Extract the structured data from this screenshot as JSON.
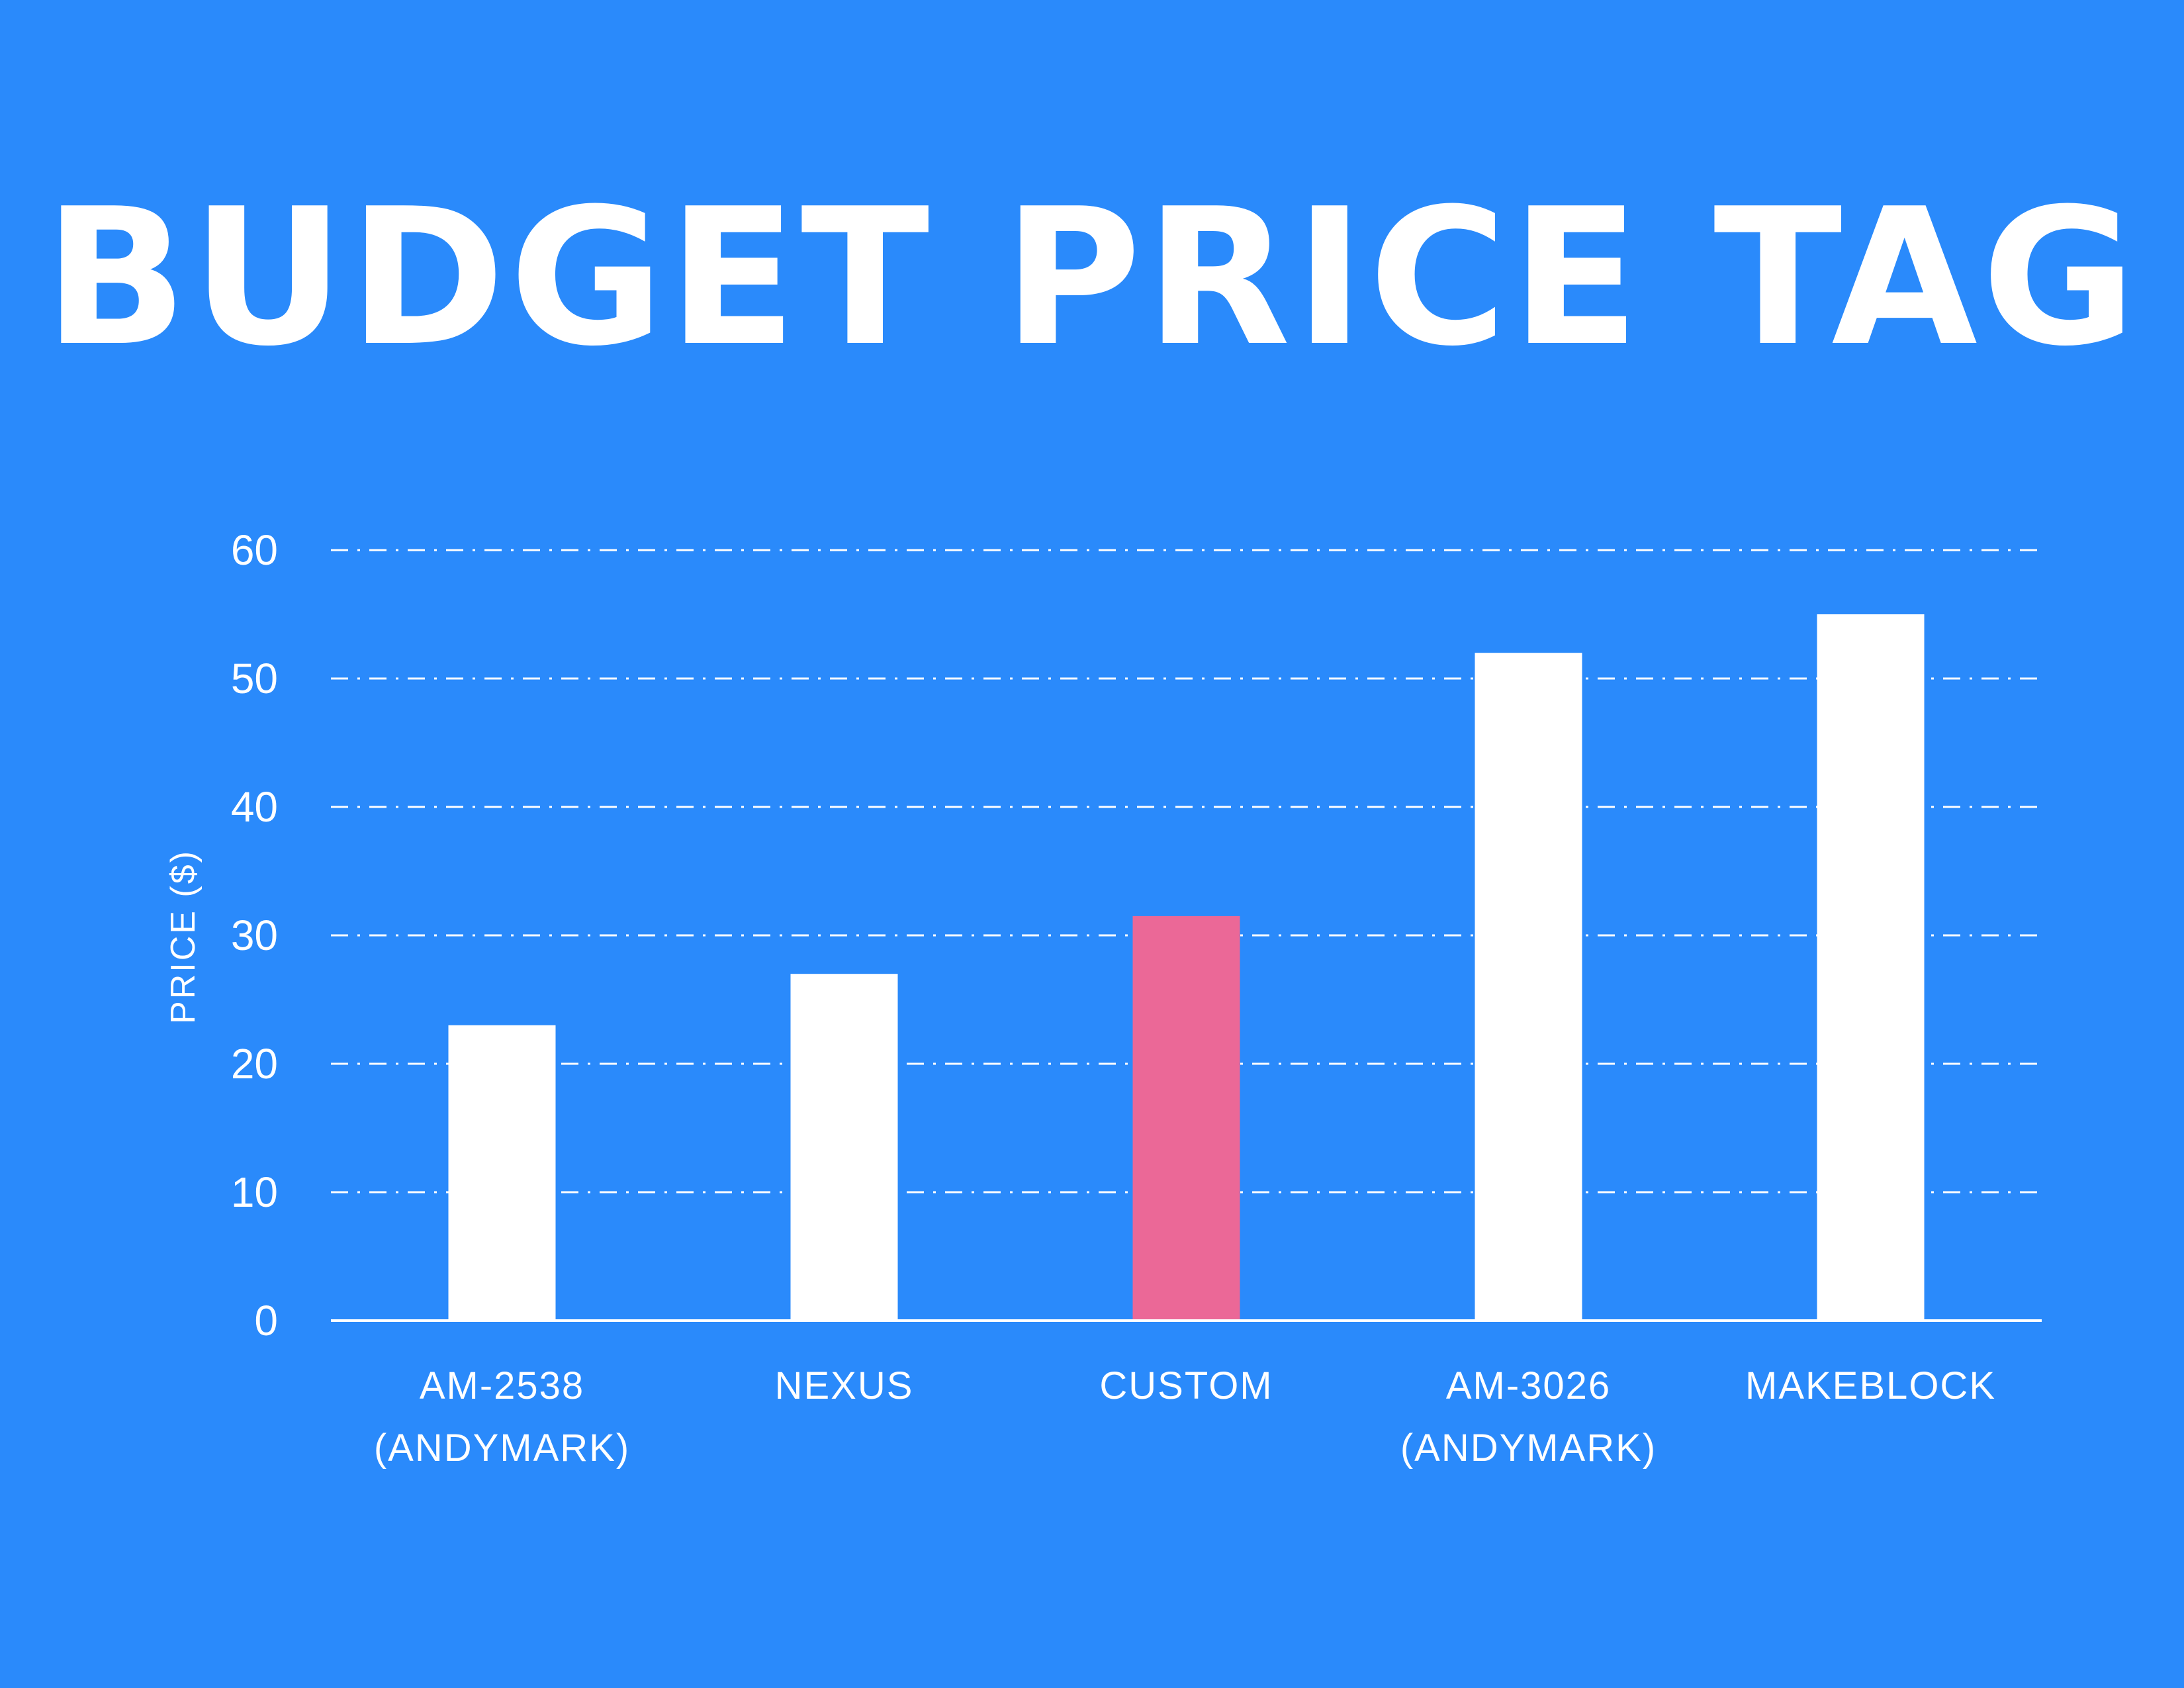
{
  "chart_data": {
    "type": "bar",
    "title": "BUDGET PRICE TAG",
    "xlabel": "",
    "ylabel": "PRICE ($)",
    "ylim": [
      0,
      60
    ],
    "yticks": [
      0,
      10,
      20,
      30,
      40,
      50,
      60
    ],
    "grid": true,
    "categories": [
      [
        "AM-2538",
        "(ANDYMARK)"
      ],
      [
        "NEXUS"
      ],
      [
        "CUSTOM"
      ],
      [
        "AM-3026",
        "(ANDYMARK)"
      ],
      [
        "MAKEBLOCK"
      ]
    ],
    "values": [
      23,
      27,
      31.5,
      52,
      55
    ],
    "colors": {
      "background": "#2a8afb",
      "bar": "#ffffff",
      "highlight_bar": "#eb6897",
      "text": "#ffffff",
      "gridline": "#ffffff"
    },
    "highlight_index": 2
  }
}
